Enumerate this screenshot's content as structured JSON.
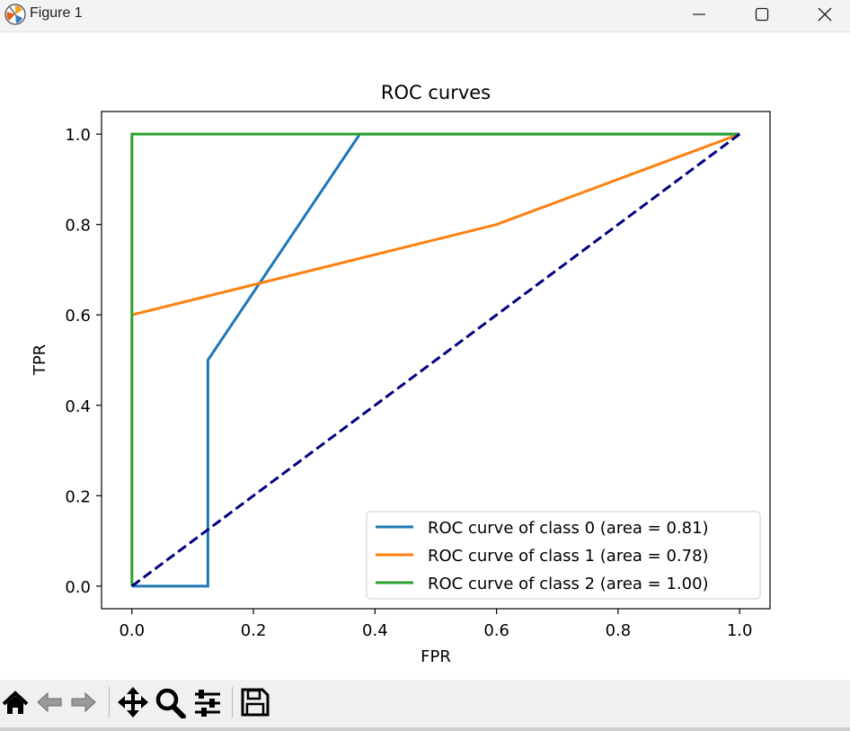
{
  "window": {
    "title": "Figure 1",
    "app_icon": "matplotlib-icon",
    "controls": [
      "minimize-icon",
      "maximize-icon",
      "close-icon"
    ]
  },
  "toolbar": {
    "icons": [
      "home-icon",
      "back-icon",
      "forward-icon",
      "pan-icon",
      "zoom-icon",
      "configure-subplots-icon",
      "save-icon"
    ]
  },
  "chart_data": {
    "type": "line",
    "title": "ROC curves",
    "xlabel": "FPR",
    "ylabel": "TPR",
    "xlim": [
      -0.05,
      1.05
    ],
    "ylim": [
      -0.05,
      1.05
    ],
    "xticks": [
      0.0,
      0.2,
      0.4,
      0.6,
      0.8,
      1.0
    ],
    "yticks": [
      0.0,
      0.2,
      0.4,
      0.6,
      0.8,
      1.0
    ],
    "tick_labels": [
      "0.0",
      "0.2",
      "0.4",
      "0.6",
      "0.8",
      "1.0"
    ],
    "grid": false,
    "legend_position": "lower right",
    "series": [
      {
        "name": "ROC curve of class 0 (area = 0.81)",
        "color": "#1f77b4",
        "x": [
          0.0,
          0.125,
          0.125,
          0.375,
          1.0
        ],
        "y": [
          0.0,
          0.0,
          0.5,
          1.0,
          1.0
        ]
      },
      {
        "name": "ROC curve of class 1 (area = 0.78)",
        "color": "#ff7f0e",
        "x": [
          0.0,
          0.6,
          1.0
        ],
        "y": [
          0.6,
          0.8,
          1.0
        ]
      },
      {
        "name": "ROC curve of class 2 (area = 1.00)",
        "color": "#2ca02c",
        "x": [
          0.0,
          0.0,
          1.0
        ],
        "y": [
          0.0,
          1.0,
          1.0
        ]
      }
    ],
    "reference_line": {
      "x": [
        0.0,
        1.0
      ],
      "y": [
        0.0,
        1.0
      ],
      "color": "#000080",
      "style": "dashed"
    }
  }
}
